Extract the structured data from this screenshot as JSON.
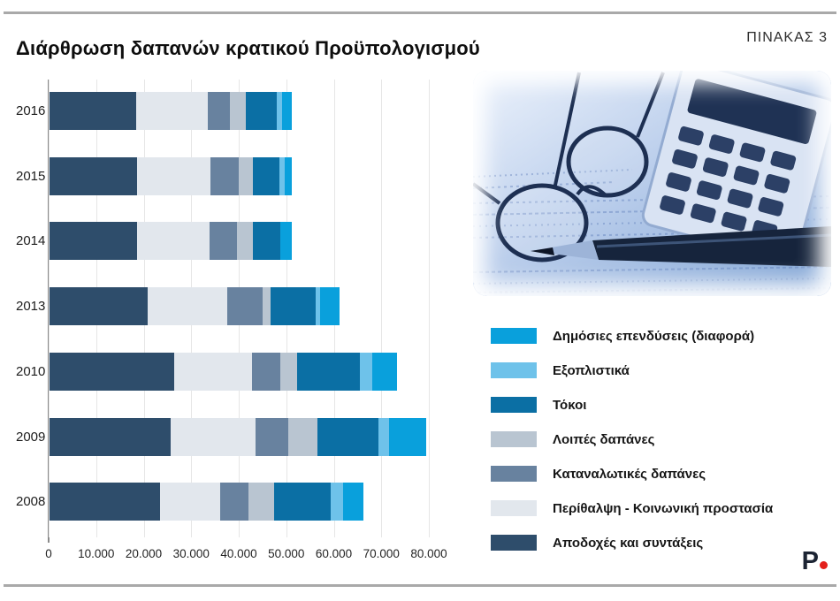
{
  "header": {
    "title": "Διάρθρωση δαπανών κρατικού Προϋπολογισμού",
    "table_label": "ΠΙΝΑΚΑΣ 3"
  },
  "branding": {
    "logo_letter": "P",
    "logo_color": "#1c2433",
    "dot_color": "#e3201b"
  },
  "photo": {
    "description": "eyeglasses, calculator and pencil on financial documents, blue tint"
  },
  "chart_data": {
    "type": "bar",
    "orientation": "horizontal",
    "stacked": true,
    "grid": true,
    "legend_position": "right",
    "title": "Διάρθρωση δαπανών κρατικού Προϋπολογισμού",
    "categories": [
      "2016",
      "2015",
      "2014",
      "2013",
      "2010",
      "2009",
      "2008"
    ],
    "x_ticks": [
      "0",
      "10.000",
      "20.000",
      "30.000",
      "40.000",
      "50.000",
      "60.000",
      "70.000",
      "80.000"
    ],
    "x_range": [
      0,
      80000
    ],
    "series": [
      {
        "name": "Αποδοχές και συντάξεις",
        "color": "#2e4d6b",
        "values": [
          18200,
          18500,
          18400,
          20700,
          26200,
          25400,
          23300
        ]
      },
      {
        "name": "Περίθαλψη - Κοινωνική προστασία",
        "color": "#e2e7ed",
        "values": [
          15100,
          15400,
          15300,
          16700,
          16400,
          18000,
          12700
        ]
      },
      {
        "name": "Καταναλωτικές δαπάνες",
        "color": "#68829f",
        "values": [
          4700,
          6000,
          5800,
          7400,
          6000,
          6800,
          5800
        ]
      },
      {
        "name": "Λοιπές δαπάνες",
        "color": "#b9c5d1",
        "values": [
          3300,
          2800,
          3300,
          1700,
          3500,
          6200,
          5400
        ]
      },
      {
        "name": "Τόκοι",
        "color": "#0b6fa4",
        "values": [
          6500,
          5700,
          5800,
          9500,
          13200,
          12900,
          12000
        ]
      },
      {
        "name": "Εξοπλιστικά",
        "color": "#6ec2ea",
        "values": [
          1100,
          1100,
          0,
          900,
          2600,
          2200,
          2600
        ]
      },
      {
        "name": "Δημόσιες επενδύσεις (διαφορά)",
        "color": "#09a0dc",
        "values": [
          2000,
          1500,
          2300,
          4100,
          5300,
          7800,
          4300
        ]
      }
    ],
    "legend_order": "reverse_of_stack"
  }
}
